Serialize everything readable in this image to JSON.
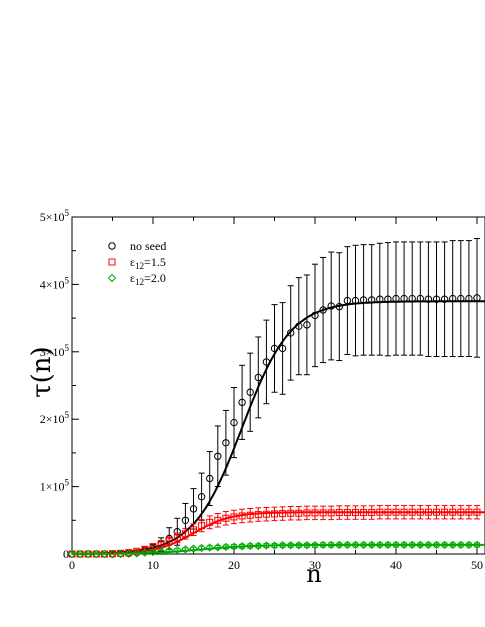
{
  "chart_data": {
    "type": "scatter",
    "xlabel": "n",
    "ylabel": "τ(n)",
    "xlim": [
      0,
      51
    ],
    "ylim": [
      0,
      500000
    ],
    "x_ticks": [
      {
        "value": 0,
        "label": "0"
      },
      {
        "value": 10,
        "label": "10"
      },
      {
        "value": 20,
        "label": "20"
      },
      {
        "value": 30,
        "label": "30"
      },
      {
        "value": 40,
        "label": "40"
      },
      {
        "value": 50,
        "label": "50"
      }
    ],
    "y_ticks": [
      {
        "value": 0,
        "mant": "0",
        "exp": ""
      },
      {
        "value": 100000,
        "mant": "1×10",
        "exp": "5"
      },
      {
        "value": 200000,
        "mant": "2×10",
        "exp": "5"
      },
      {
        "value": 300000,
        "mant": "3×10",
        "exp": "5"
      },
      {
        "value": 400000,
        "mant": "4×10",
        "exp": "5"
      },
      {
        "value": 500000,
        "mant": "5×10",
        "exp": "5"
      }
    ],
    "legend": {
      "position": "top-left",
      "entries": [
        {
          "marker": "circle",
          "color": "#000000",
          "text": "no seed",
          "sub": "",
          "after": ""
        },
        {
          "marker": "square",
          "color": "#ff0000",
          "text": "ε",
          "sub": "12",
          "after": "=1.5"
        },
        {
          "marker": "diamond",
          "color": "#00aa00",
          "text": "ε",
          "sub": "12",
          "after": "=2.0"
        }
      ]
    },
    "series": [
      {
        "marker": "circle",
        "color": "#000000",
        "x": [
          0,
          1,
          2,
          3,
          4,
          5,
          6,
          7,
          8,
          9,
          10,
          11,
          12,
          13,
          14,
          15,
          16,
          17,
          18,
          19,
          20,
          21,
          22,
          23,
          24,
          25,
          26,
          27,
          28,
          29,
          30,
          31,
          32,
          33,
          34,
          35,
          36,
          37,
          38,
          39,
          40,
          41,
          42,
          43,
          44,
          45,
          46,
          47,
          48,
          49,
          50,
          51
        ],
        "y": [
          0,
          0,
          0,
          0,
          0,
          0,
          500,
          1000,
          2000,
          5000,
          8000,
          14000,
          23000,
          33000,
          50000,
          67000,
          85000,
          112000,
          145000,
          165000,
          195000,
          225000,
          240000,
          262000,
          285000,
          305000,
          305000,
          328000,
          338000,
          340000,
          354000,
          362000,
          368000,
          367000,
          376000,
          376000,
          377000,
          377000,
          378000,
          378000,
          379000,
          379000,
          379000,
          379000,
          378000,
          378000,
          378000,
          379000,
          379000,
          379000,
          380000,
          380000
        ],
        "err": [
          0,
          0,
          0,
          0,
          0,
          500,
          1000,
          2000,
          3000,
          5000,
          6000,
          10000,
          16000,
          20000,
          25000,
          30000,
          35000,
          40000,
          45000,
          48000,
          52000,
          55000,
          58000,
          60000,
          62000,
          65000,
          68000,
          70000,
          72000,
          74000,
          76000,
          78000,
          80000,
          80000,
          80000,
          82000,
          82000,
          82000,
          83000,
          84000,
          84000,
          84000,
          84000,
          84000,
          85000,
          85000,
          85000,
          86000,
          86000,
          86000,
          88000,
          88000
        ]
      },
      {
        "marker": "square",
        "color": "#ff0000",
        "x": [
          0,
          1,
          2,
          3,
          4,
          5,
          6,
          7,
          8,
          9,
          10,
          11,
          12,
          13,
          14,
          15,
          16,
          17,
          18,
          19,
          20,
          21,
          22,
          23,
          24,
          25,
          26,
          27,
          28,
          29,
          30,
          31,
          32,
          33,
          34,
          35,
          36,
          37,
          38,
          39,
          40,
          41,
          42,
          43,
          44,
          45,
          46,
          47,
          48,
          49,
          50,
          51
        ],
        "y": [
          0,
          0,
          0,
          0,
          0,
          500,
          1000,
          2000,
          4000,
          7000,
          11000,
          15000,
          19000,
          24000,
          30000,
          36000,
          42000,
          47000,
          50000,
          53000,
          55000,
          56500,
          57500,
          58500,
          59000,
          59500,
          60000,
          60500,
          60500,
          61000,
          61000,
          61000,
          61000,
          61500,
          61500,
          61500,
          61500,
          61500,
          62000,
          62000,
          62000,
          62000,
          62000,
          62000,
          62000,
          62000,
          62000,
          62000,
          62000,
          62000,
          62000,
          62000
        ],
        "err": [
          0,
          0,
          0,
          0,
          0,
          500,
          1000,
          1500,
          2000,
          3000,
          4000,
          5000,
          6000,
          7000,
          8000,
          8500,
          9000,
          9500,
          10000,
          10000,
          10000,
          10000,
          10000,
          10000,
          10000,
          10000,
          10000,
          10000,
          10000,
          10000,
          10000,
          10000,
          10000,
          10000,
          10000,
          10000,
          10000,
          10000,
          10000,
          10000,
          10000,
          10000,
          10000,
          10000,
          10000,
          10000,
          10000,
          10000,
          10000,
          10000,
          10000,
          10000
        ]
      },
      {
        "marker": "diamond",
        "color": "#00aa00",
        "x": [
          0,
          1,
          2,
          3,
          4,
          5,
          6,
          7,
          8,
          9,
          10,
          11,
          12,
          13,
          14,
          15,
          16,
          17,
          18,
          19,
          20,
          21,
          22,
          23,
          24,
          25,
          26,
          27,
          28,
          29,
          30,
          31,
          32,
          33,
          34,
          35,
          36,
          37,
          38,
          39,
          40,
          41,
          42,
          43,
          44,
          45,
          46,
          47,
          48,
          49,
          50,
          51
        ],
        "y": [
          0,
          0,
          0,
          0,
          0,
          0,
          200,
          500,
          1000,
          2000,
          3000,
          4000,
          5000,
          6000,
          7000,
          8000,
          9000,
          9500,
          10000,
          10500,
          11000,
          11500,
          12000,
          12000,
          12500,
          12500,
          13000,
          13000,
          13000,
          13000,
          13000,
          13500,
          13500,
          13500,
          13500,
          13500,
          13500,
          13500,
          13500,
          13500,
          13500,
          13500,
          13500,
          13500,
          13500,
          13500,
          13500,
          13500,
          13500,
          13500,
          13500,
          13500
        ],
        "err": [
          0,
          0,
          0,
          0,
          0,
          0,
          200,
          300,
          500,
          800,
          1000,
          1200,
          1500,
          1800,
          2000,
          2200,
          2400,
          2500,
          2600,
          2700,
          2800,
          2900,
          3000,
          3000,
          3000,
          3000,
          3000,
          3000,
          3000,
          3000,
          3000,
          3000,
          3000,
          3000,
          3000,
          3000,
          3000,
          3000,
          3000,
          3000,
          3000,
          3000,
          3000,
          3000,
          3000,
          3000,
          3000,
          3000,
          3000,
          3000,
          3000,
          3000
        ]
      }
    ],
    "fit_curves": [
      {
        "color": "#000000",
        "plateau": 375000,
        "midpoint": 21,
        "scale": 3
      },
      {
        "color": "#ff0000",
        "plateau": 62000,
        "midpoint": 15,
        "scale": 2.3
      },
      {
        "color": "#00aa00",
        "plateau": 13500,
        "midpoint": 16,
        "scale": 3.2
      }
    ]
  }
}
